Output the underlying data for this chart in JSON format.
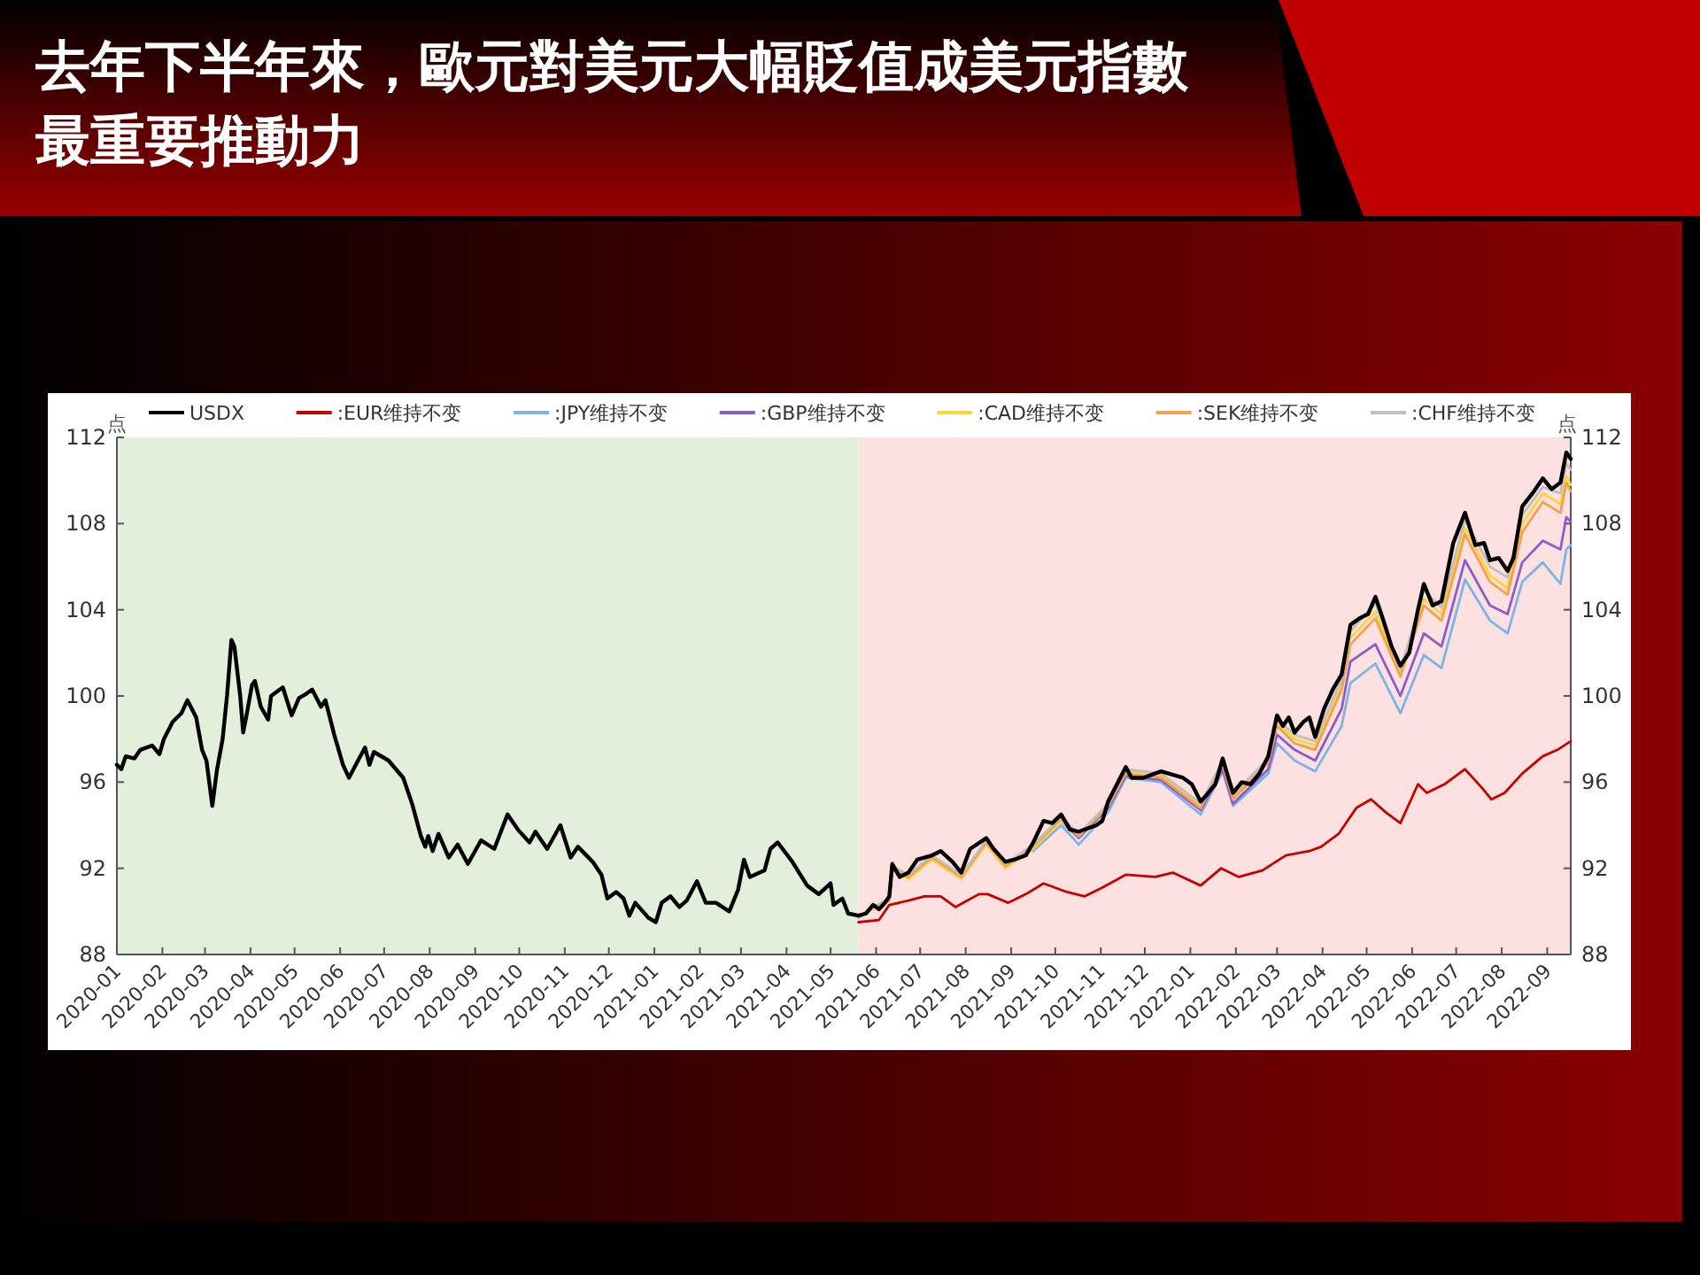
{
  "chart_data": {
    "type": "line",
    "title": "去年下半年來，歐元對美元大幅貶值成美元指數最重要推動力",
    "ylabel": "点",
    "y2label": "点",
    "legend": "top",
    "xlim": [
      "2020-01-01",
      "2022-09-17"
    ],
    "xticks": [
      "2020-01",
      "2020-02",
      "2020-03",
      "2020-04",
      "2020-05",
      "2020-06",
      "2020-07",
      "2020-08",
      "2020-09",
      "2020-10",
      "2020-11",
      "2020-12",
      "2021-01",
      "2021-02",
      "2021-03",
      "2021-04",
      "2021-05",
      "2021-06",
      "2021-07",
      "2021-08",
      "2021-09",
      "2021-10",
      "2021-11",
      "2021-12",
      "2022-01",
      "2022-02",
      "2022-03",
      "2022-04",
      "2022-05",
      "2022-06",
      "2022-07",
      "2022-08",
      "2022-09"
    ],
    "ylim": [
      88,
      112
    ],
    "yticks": [
      88,
      92,
      96,
      100,
      104,
      108,
      112
    ],
    "y2lim": [
      88,
      112
    ],
    "y2ticks": [
      88,
      92,
      96,
      100,
      104,
      108,
      112
    ],
    "bands": [
      {
        "axis": "x",
        "from": "2020-01-01",
        "to": "2021-05-20",
        "color": "#e2efda"
      },
      {
        "axis": "x",
        "from": "2021-05-20",
        "to": "2022-09-17",
        "color": "#fde1e1"
      }
    ],
    "series": [
      {
        "name": "USDX",
        "color": "#000000",
        "x": [
          "2020-01-01",
          "2020-01-04",
          "2020-01-07",
          "2020-01-13",
          "2020-01-17",
          "2020-01-25",
          "2020-01-30",
          "2020-02-02",
          "2020-02-08",
          "2020-02-14",
          "2020-02-18",
          "2020-02-24",
          "2020-02-28",
          "2020-03-02",
          "2020-03-06",
          "2020-03-09",
          "2020-03-13",
          "2020-03-16",
          "2020-03-19",
          "2020-03-21",
          "2020-03-25",
          "2020-03-27",
          "2020-03-29",
          "2020-04-02",
          "2020-04-04",
          "2020-04-08",
          "2020-04-13",
          "2020-04-15",
          "2020-04-23",
          "2020-04-29",
          "2020-05-04",
          "2020-05-09",
          "2020-05-13",
          "2020-05-19",
          "2020-05-22",
          "2020-05-28",
          "2020-06-03",
          "2020-06-07",
          "2020-06-14",
          "2020-06-18",
          "2020-06-21",
          "2020-06-24",
          "2020-07-04",
          "2020-07-14",
          "2020-07-20",
          "2020-07-26",
          "2020-07-29",
          "2020-07-31",
          "2020-08-03",
          "2020-08-07",
          "2020-08-14",
          "2020-08-20",
          "2020-08-27",
          "2020-09-05",
          "2020-09-14",
          "2020-09-23",
          "2020-09-30",
          "2020-10-08",
          "2020-10-12",
          "2020-10-20",
          "2020-10-29",
          "2020-11-05",
          "2020-11-10",
          "2020-11-20",
          "2020-11-26",
          "2020-11-30",
          "2020-12-06",
          "2020-12-11",
          "2020-12-15",
          "2020-12-19",
          "2020-12-28",
          "2021-01-02",
          "2021-01-06",
          "2021-01-12",
          "2021-01-18",
          "2021-01-23",
          "2021-01-30",
          "2021-02-05",
          "2021-02-12",
          "2021-02-21",
          "2021-02-27",
          "2021-03-03",
          "2021-03-07",
          "2021-03-17",
          "2021-03-21",
          "2021-03-26",
          "2021-04-05",
          "2021-04-15",
          "2021-04-23",
          "2021-05-01",
          "2021-05-03",
          "2021-05-09",
          "2021-05-13",
          "2021-05-20",
          "2021-05-25",
          "2021-05-30",
          "2021-06-03",
          "2021-06-07",
          "2021-06-10",
          "2021-06-12",
          "2021-06-17",
          "2021-06-23",
          "2021-06-29",
          "2021-07-09",
          "2021-07-15",
          "2021-07-23",
          "2021-07-29",
          "2021-08-04",
          "2021-08-15",
          "2021-08-20",
          "2021-08-28",
          "2021-09-03",
          "2021-09-11",
          "2021-09-16",
          "2021-09-23",
          "2021-09-29",
          "2021-10-05",
          "2021-10-11",
          "2021-10-17",
          "2021-10-29",
          "2021-11-02",
          "2021-11-06",
          "2021-11-12",
          "2021-11-18",
          "2021-11-22",
          "2021-11-30",
          "2021-12-12",
          "2021-12-27",
          "2022-01-02",
          "2022-01-08",
          "2022-01-12",
          "2022-01-18",
          "2022-01-23",
          "2022-01-26",
          "2022-01-30",
          "2022-02-05",
          "2022-02-11",
          "2022-02-17",
          "2022-02-23",
          "2022-03-01",
          "2022-03-05",
          "2022-03-09",
          "2022-03-13",
          "2022-03-19",
          "2022-03-23",
          "2022-03-27",
          "2022-04-02",
          "2022-04-08",
          "2022-04-14",
          "2022-04-20",
          "2022-04-26",
          "2022-05-02",
          "2022-05-07",
          "2022-05-12",
          "2022-05-18",
          "2022-05-24",
          "2022-05-30",
          "2022-06-05",
          "2022-06-09",
          "2022-06-15",
          "2022-06-21",
          "2022-06-29",
          "2022-07-07",
          "2022-07-14",
          "2022-07-20",
          "2022-07-24",
          "2022-07-30",
          "2022-08-05",
          "2022-08-09",
          "2022-08-15",
          "2022-08-23",
          "2022-08-29",
          "2022-09-04",
          "2022-09-10",
          "2022-09-14",
          "2022-09-17"
        ],
        "values": [
          96.8,
          96.6,
          97.2,
          97.1,
          97.5,
          97.7,
          97.3,
          98.0,
          98.8,
          99.2,
          99.8,
          99.0,
          97.5,
          97.0,
          94.9,
          96.5,
          98.0,
          100.0,
          102.6,
          102.3,
          100.0,
          98.3,
          99.0,
          100.5,
          100.7,
          99.5,
          98.9,
          100.0,
          100.4,
          99.1,
          99.9,
          100.1,
          100.3,
          99.5,
          99.8,
          98.2,
          96.8,
          96.2,
          97.1,
          97.6,
          96.8,
          97.4,
          97.0,
          96.2,
          95.0,
          93.5,
          93.0,
          93.5,
          92.8,
          93.6,
          92.5,
          93.1,
          92.2,
          93.3,
          92.9,
          94.5,
          93.8,
          93.2,
          93.7,
          92.9,
          94.0,
          92.5,
          93.0,
          92.3,
          91.7,
          90.6,
          90.9,
          90.6,
          89.8,
          90.4,
          89.7,
          89.5,
          90.4,
          90.7,
          90.2,
          90.5,
          91.4,
          90.4,
          90.4,
          90.0,
          91.0,
          92.4,
          91.6,
          91.9,
          92.9,
          93.2,
          92.3,
          91.2,
          90.8,
          91.3,
          90.3,
          90.6,
          89.9,
          89.8,
          89.9,
          90.3,
          90.1,
          90.4,
          90.7,
          92.2,
          91.6,
          91.8,
          92.4,
          92.6,
          92.8,
          92.3,
          91.8,
          92.9,
          93.4,
          92.9,
          92.3,
          92.4,
          92.6,
          93.2,
          94.2,
          94.1,
          94.5,
          93.8,
          93.7,
          94.0,
          94.2,
          95.1,
          95.9,
          96.7,
          96.2,
          96.2,
          96.5,
          96.2,
          95.9,
          95.1,
          95.4,
          95.9,
          97.1,
          96.4,
          95.5,
          96.0,
          95.9,
          96.4,
          97.2,
          99.1,
          98.6,
          99.0,
          98.3,
          98.8,
          99.0,
          98.1,
          99.4,
          100.3,
          101.0,
          103.3,
          103.6,
          103.8,
          104.6,
          103.6,
          102.3,
          101.4,
          102.0,
          104.0,
          105.2,
          104.2,
          104.4,
          107.1,
          108.5,
          107.0,
          107.1,
          106.3,
          106.4,
          105.8,
          106.4,
          108.8,
          109.5,
          110.1,
          109.6,
          109.9,
          111.3,
          111.0
        ]
      },
      {
        "name": ":EUR维持不变",
        "color": "#c80000",
        "x": [
          "2021-05-20",
          "2021-06-03",
          "2021-06-10",
          "2021-06-23",
          "2021-07-04",
          "2021-07-15",
          "2021-07-25",
          "2021-08-10",
          "2021-08-16",
          "2021-08-30",
          "2021-09-11",
          "2021-09-23",
          "2021-10-09",
          "2021-10-21",
          "2021-11-02",
          "2021-11-18",
          "2021-12-08",
          "2021-12-20",
          "2022-01-08",
          "2022-01-22",
          "2022-02-03",
          "2022-02-19",
          "2022-03-07",
          "2022-03-23",
          "2022-03-31",
          "2022-04-12",
          "2022-04-24",
          "2022-05-04",
          "2022-05-14",
          "2022-05-24",
          "2022-06-05",
          "2022-06-11",
          "2022-06-23",
          "2022-07-07",
          "2022-07-19",
          "2022-07-25",
          "2022-08-03",
          "2022-08-15",
          "2022-08-29",
          "2022-09-08",
          "2022-09-17"
        ],
        "values": [
          89.5,
          89.6,
          90.3,
          90.5,
          90.7,
          90.7,
          90.2,
          90.8,
          90.8,
          90.4,
          90.8,
          91.3,
          90.9,
          90.7,
          91.1,
          91.7,
          91.6,
          91.8,
          91.2,
          92.0,
          91.6,
          91.9,
          92.6,
          92.8,
          93.0,
          93.6,
          94.8,
          95.2,
          94.6,
          94.1,
          95.9,
          95.5,
          95.9,
          96.6,
          95.7,
          95.2,
          95.5,
          96.4,
          97.2,
          97.5,
          97.9
        ]
      },
      {
        "name": ":JPY维持不变",
        "color": "#7eb3e6",
        "x": [
          "2021-09-16",
          "2021-10-05",
          "2021-10-17",
          "2021-11-06",
          "2021-11-18",
          "2021-12-12",
          "2022-01-08",
          "2022-01-23",
          "2022-01-30",
          "2022-02-23",
          "2022-03-01",
          "2022-03-13",
          "2022-03-27",
          "2022-04-14",
          "2022-04-20",
          "2022-05-07",
          "2022-05-24",
          "2022-06-09",
          "2022-06-21",
          "2022-07-07",
          "2022-07-24",
          "2022-08-05",
          "2022-08-15",
          "2022-08-29",
          "2022-09-10",
          "2022-09-14",
          "2022-09-17"
        ],
        "values": [
          92.8,
          94.0,
          93.1,
          94.6,
          96.2,
          96.0,
          94.5,
          96.5,
          94.9,
          96.4,
          97.8,
          97.0,
          96.5,
          98.6,
          100.6,
          101.5,
          99.2,
          101.9,
          101.3,
          105.4,
          103.5,
          102.9,
          105.3,
          106.2,
          105.2,
          106.8,
          107.0
        ]
      },
      {
        "name": ":GBP维持不变",
        "color": "#8d5cc9",
        "x": [
          "2021-08-28",
          "2021-09-16",
          "2021-10-05",
          "2021-10-17",
          "2021-11-06",
          "2021-11-18",
          "2021-12-12",
          "2022-01-08",
          "2022-01-23",
          "2022-01-30",
          "2022-02-23",
          "2022-03-01",
          "2022-03-13",
          "2022-03-27",
          "2022-04-14",
          "2022-04-20",
          "2022-05-07",
          "2022-05-24",
          "2022-06-09",
          "2022-06-21",
          "2022-07-07",
          "2022-07-24",
          "2022-08-05",
          "2022-08-15",
          "2022-08-29",
          "2022-09-10",
          "2022-09-14",
          "2022-09-17"
        ],
        "values": [
          92.1,
          93.0,
          94.2,
          93.4,
          94.8,
          96.3,
          96.1,
          94.7,
          96.6,
          95.0,
          96.6,
          98.2,
          97.5,
          97.0,
          99.4,
          101.6,
          102.4,
          100.0,
          102.9,
          102.3,
          106.3,
          104.2,
          103.8,
          106.2,
          107.2,
          106.8,
          108.3,
          108.1
        ]
      },
      {
        "name": ":CAD维持不变",
        "color": "#ffd43b",
        "x": [
          "2021-05-20",
          "2021-05-30",
          "2021-06-10",
          "2021-06-12",
          "2021-06-23",
          "2021-07-09",
          "2021-07-29",
          "2021-08-15",
          "2021-08-28",
          "2021-09-16",
          "2021-10-05",
          "2021-10-17",
          "2021-11-06",
          "2021-11-18",
          "2021-12-12",
          "2022-01-08",
          "2022-01-23",
          "2022-01-30",
          "2022-02-23",
          "2022-03-01",
          "2022-03-13",
          "2022-03-27",
          "2022-04-14",
          "2022-04-20",
          "2022-05-07",
          "2022-05-24",
          "2022-06-09",
          "2022-06-21",
          "2022-07-07",
          "2022-07-24",
          "2022-08-05",
          "2022-08-15",
          "2022-08-29",
          "2022-09-10",
          "2022-09-14",
          "2022-09-17"
        ],
        "values": [
          89.7,
          90.1,
          90.5,
          91.9,
          91.5,
          92.4,
          91.5,
          93.1,
          92.0,
          92.9,
          94.2,
          93.5,
          94.9,
          96.5,
          96.3,
          94.9,
          96.9,
          95.3,
          97.0,
          98.8,
          98.0,
          97.7,
          100.5,
          102.7,
          103.9,
          101.0,
          104.5,
          103.8,
          107.8,
          105.6,
          105.0,
          108.0,
          109.4,
          108.9,
          110.2,
          109.8
        ]
      },
      {
        "name": ":SEK维持不变",
        "color": "#f5a04c",
        "x": [
          "2021-05-20",
          "2021-05-30",
          "2021-06-10",
          "2021-06-12",
          "2021-06-23",
          "2021-07-09",
          "2021-07-29",
          "2021-08-15",
          "2021-08-28",
          "2021-09-16",
          "2021-10-05",
          "2021-10-17",
          "2021-11-06",
          "2021-11-18",
          "2021-12-12",
          "2022-01-08",
          "2022-01-23",
          "2022-01-30",
          "2022-02-23",
          "2022-03-01",
          "2022-03-13",
          "2022-03-27",
          "2022-04-14",
          "2022-04-20",
          "2022-05-07",
          "2022-05-24",
          "2022-06-09",
          "2022-06-21",
          "2022-07-07",
          "2022-07-24",
          "2022-08-05",
          "2022-08-15",
          "2022-08-29",
          "2022-09-10",
          "2022-09-14",
          "2022-09-17"
        ],
        "values": [
          89.7,
          90.2,
          90.5,
          92.0,
          91.6,
          92.5,
          91.6,
          93.2,
          92.1,
          93.0,
          94.3,
          93.5,
          94.9,
          96.4,
          96.2,
          94.8,
          96.8,
          95.2,
          96.9,
          98.6,
          97.8,
          97.5,
          100.3,
          102.4,
          103.6,
          100.9,
          104.2,
          103.5,
          107.5,
          105.3,
          104.7,
          107.6,
          109.0,
          108.5,
          109.9,
          109.5
        ]
      },
      {
        "name": ":CHF维持不变",
        "color": "#bfbfbf",
        "x": [
          "2021-05-20",
          "2021-05-30",
          "2021-06-10",
          "2021-06-12",
          "2021-06-23",
          "2021-07-09",
          "2021-07-29",
          "2021-08-15",
          "2021-08-28",
          "2021-09-16",
          "2021-10-05",
          "2021-10-17",
          "2021-11-06",
          "2021-11-18",
          "2021-12-12",
          "2022-01-08",
          "2022-01-23",
          "2022-01-30",
          "2022-02-23",
          "2022-03-01",
          "2022-03-13",
          "2022-03-27",
          "2022-04-14",
          "2022-04-20",
          "2022-05-07",
          "2022-05-24",
          "2022-06-09",
          "2022-06-21",
          "2022-07-07",
          "2022-07-24",
          "2022-08-05",
          "2022-08-15",
          "2022-08-29",
          "2022-09-10",
          "2022-09-14",
          "2022-09-17"
        ],
        "values": [
          89.7,
          90.2,
          90.6,
          92.1,
          91.7,
          92.6,
          91.7,
          93.3,
          92.2,
          93.1,
          94.4,
          93.6,
          95.0,
          96.6,
          96.4,
          95.0,
          97.0,
          95.4,
          97.1,
          98.9,
          98.2,
          97.9,
          100.8,
          103.0,
          104.3,
          101.2,
          104.9,
          104.1,
          108.2,
          106.0,
          105.5,
          108.4,
          109.7,
          109.4,
          110.8,
          110.5
        ]
      }
    ]
  }
}
